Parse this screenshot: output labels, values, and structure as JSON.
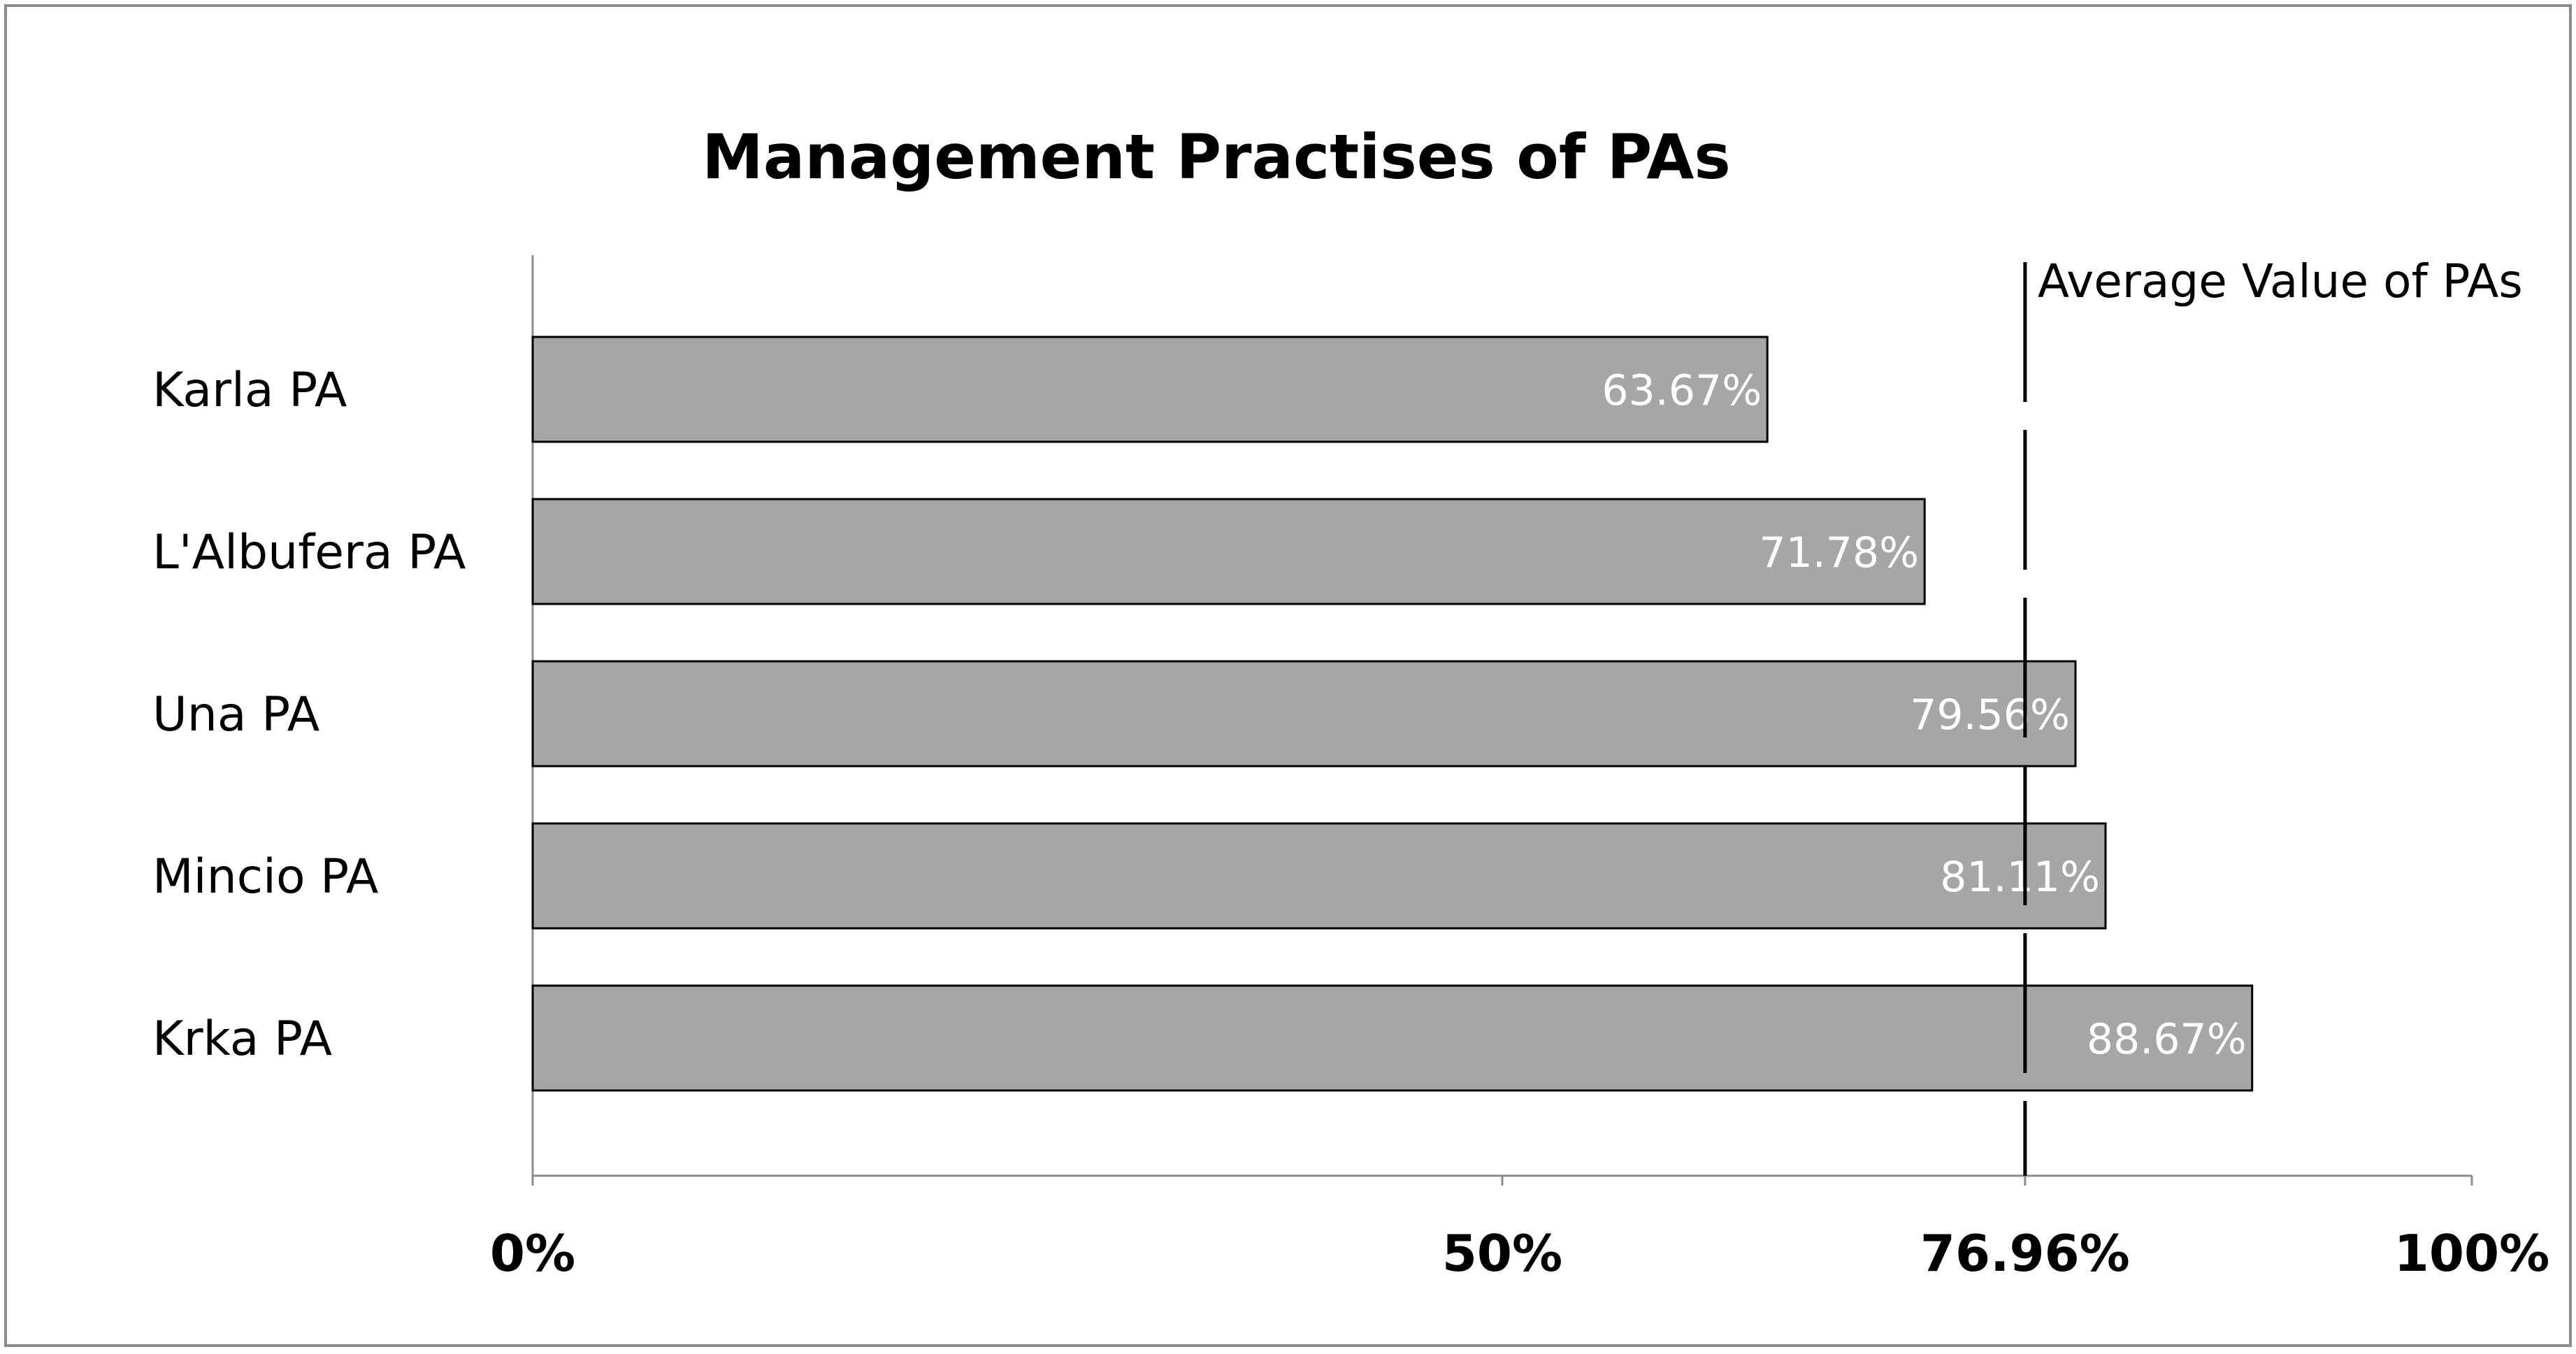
{
  "chart_data": {
    "type": "bar",
    "orientation": "horizontal",
    "title": "Management Practises of PAs",
    "categories": [
      "Karla PA",
      "L'Albufera PA",
      "Una PA",
      "Mincio PA",
      "Krka PA"
    ],
    "values": [
      63.67,
      71.78,
      79.56,
      81.11,
      88.67
    ],
    "data_labels": [
      "63.67%",
      "71.78%",
      "79.56%",
      "81.11%",
      "88.67%"
    ],
    "xlim": [
      0,
      100
    ],
    "x_ticks": [
      0,
      50,
      76.96,
      100
    ],
    "x_tick_labels": [
      "0%",
      "50%",
      "76.96%",
      "100%"
    ],
    "reference_line": {
      "value": 76.96,
      "label": "Average Value of PAs",
      "style": "dashed"
    },
    "bar_color": "#a6a6a6",
    "bar_border_color": "#000000",
    "data_label_color": "#ffffff",
    "grid": false,
    "legend": "none"
  }
}
